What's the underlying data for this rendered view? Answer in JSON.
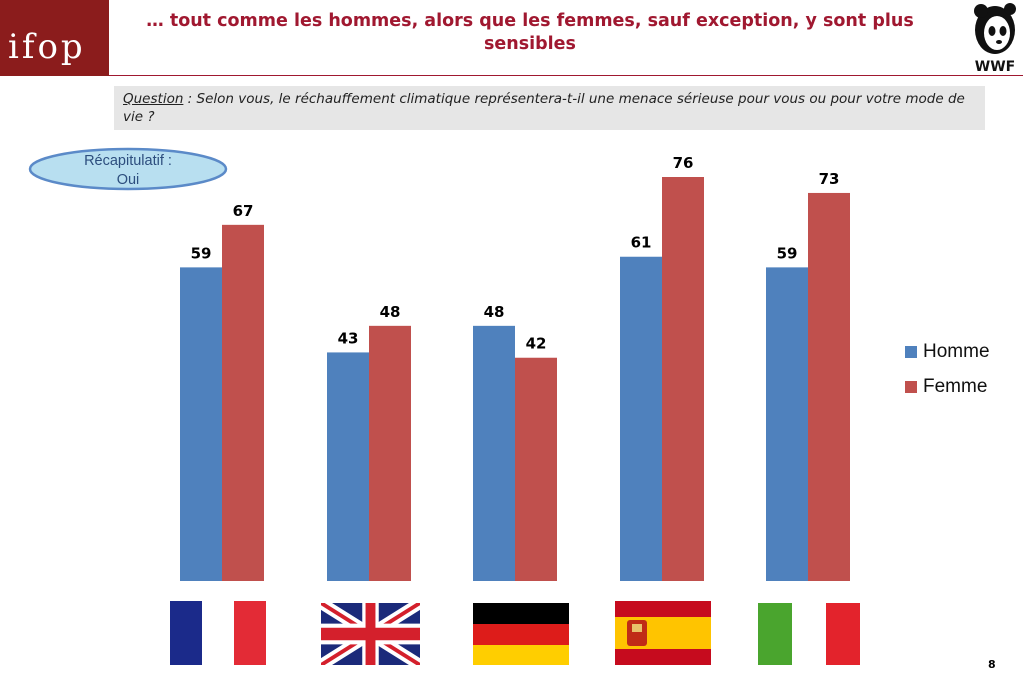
{
  "header": {
    "title": "… tout comme les hommes, alors que les femmes, sauf exception, y sont plus sensibles",
    "ifop_logo_text": "ifop",
    "wwf_logo_text": "WWF"
  },
  "question": {
    "label": "Question",
    "text": " : Selon vous, le réchauffement climatique représentera-t-il une menace sérieuse pour vous ou pour votre mode de vie ?"
  },
  "recap": {
    "line1": "Récapitulatif :",
    "line2": "Oui"
  },
  "colors": {
    "accent": "#a01830",
    "logo_bg": "#8b1c1c",
    "homme": "#4f81bd",
    "femme": "#c0504d",
    "badge_fill": "#b8dff0",
    "badge_stroke": "#5b8ac8"
  },
  "chart_data": {
    "type": "bar",
    "categories": [
      "France",
      "Royaume-Uni",
      "Allemagne",
      "Espagne",
      "Italie"
    ],
    "category_icons": [
      "flag-france-icon",
      "flag-uk-icon",
      "flag-germany-icon",
      "flag-spain-icon",
      "flag-italy-icon"
    ],
    "series": [
      {
        "name": "Homme",
        "values": [
          59,
          43,
          48,
          61,
          59
        ],
        "color": "#4f81bd"
      },
      {
        "name": "Femme",
        "values": [
          67,
          48,
          42,
          76,
          73
        ],
        "color": "#c0504d"
      }
    ],
    "ylim": [
      0,
      76
    ],
    "legend": "right",
    "grid": false
  },
  "footer": {
    "page_number": "8"
  }
}
